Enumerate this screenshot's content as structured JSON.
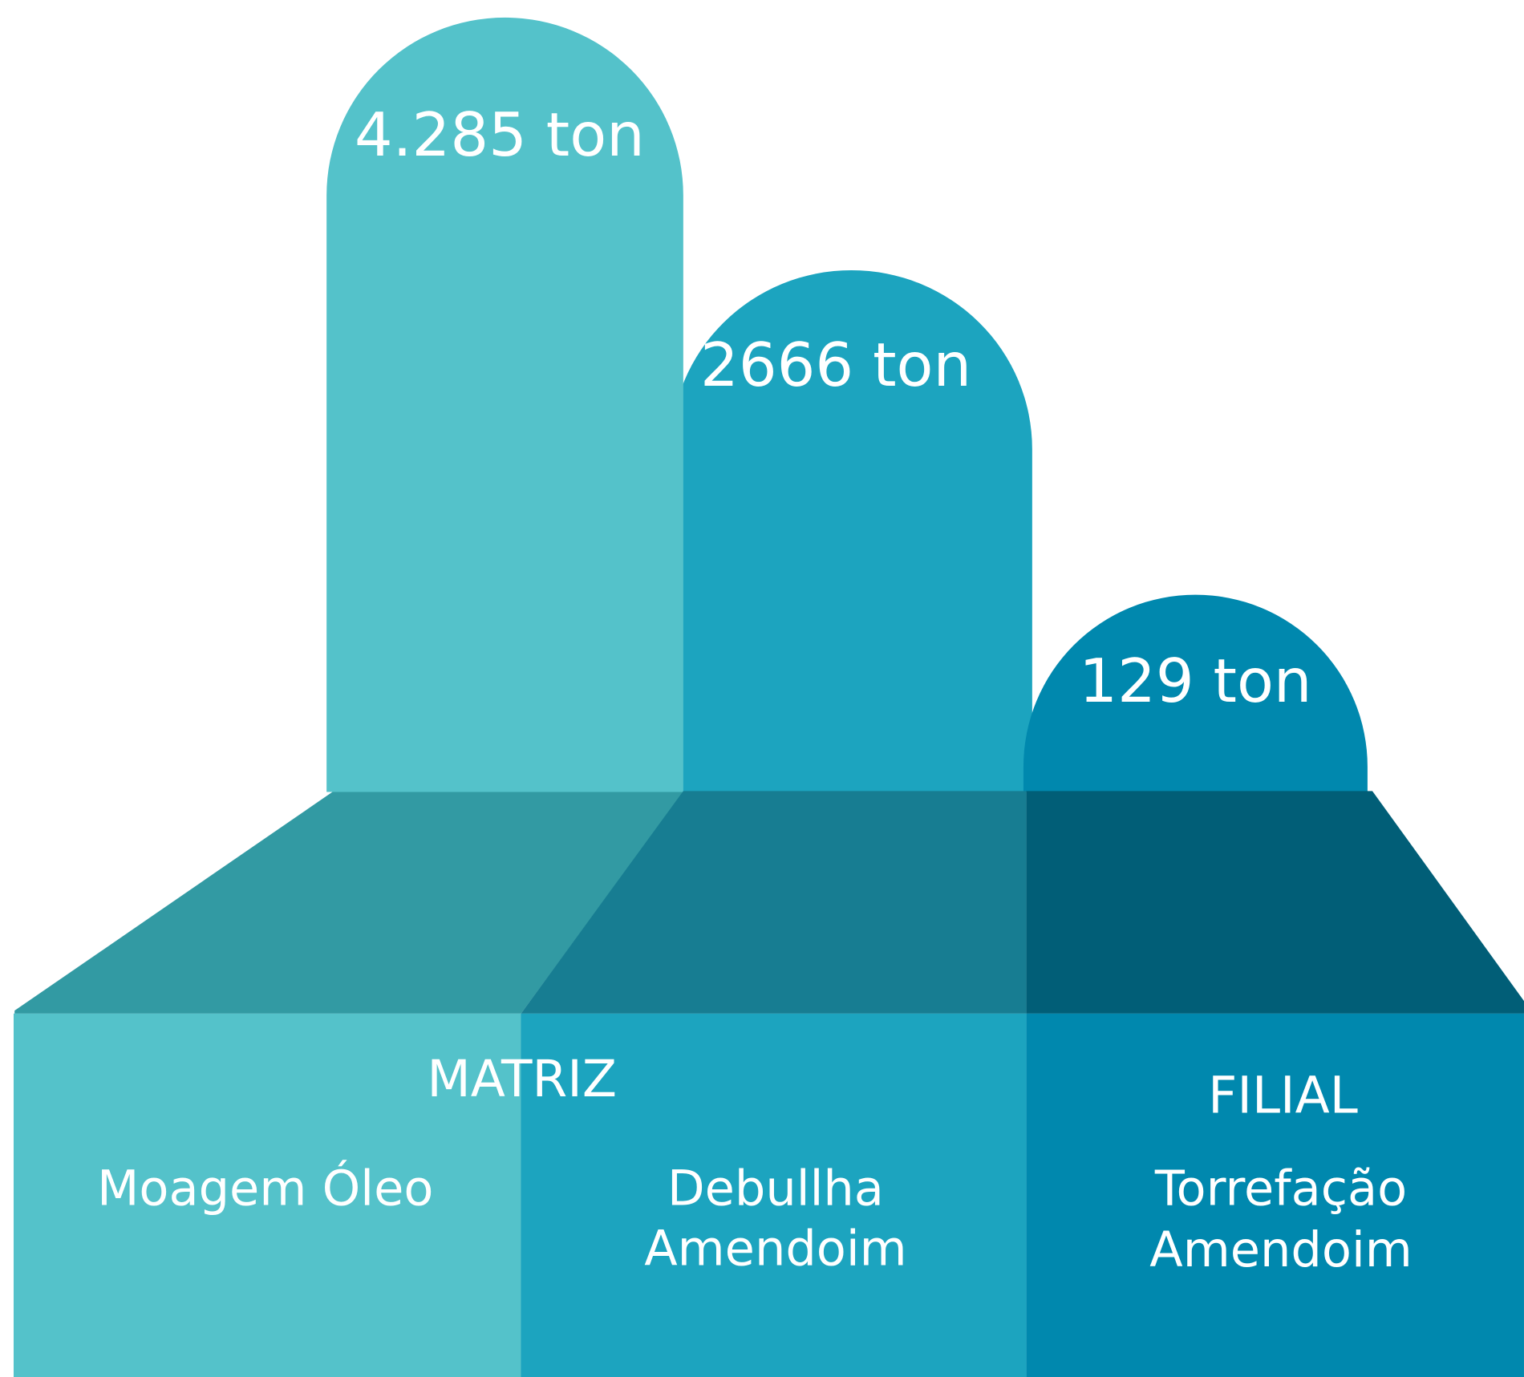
{
  "bars": [
    {
      "label": "4.285 ton",
      "name_lines": [
        "Moagem Óleo"
      ]
    },
    {
      "label": "2666 ton",
      "name_lines": [
        "Debullha",
        "Amendoim"
      ]
    },
    {
      "label": "129 ton",
      "name_lines": [
        "Torrefação",
        "Amendoim"
      ]
    }
  ],
  "groups": [
    "MATRIZ",
    "FILIAL"
  ]
}
